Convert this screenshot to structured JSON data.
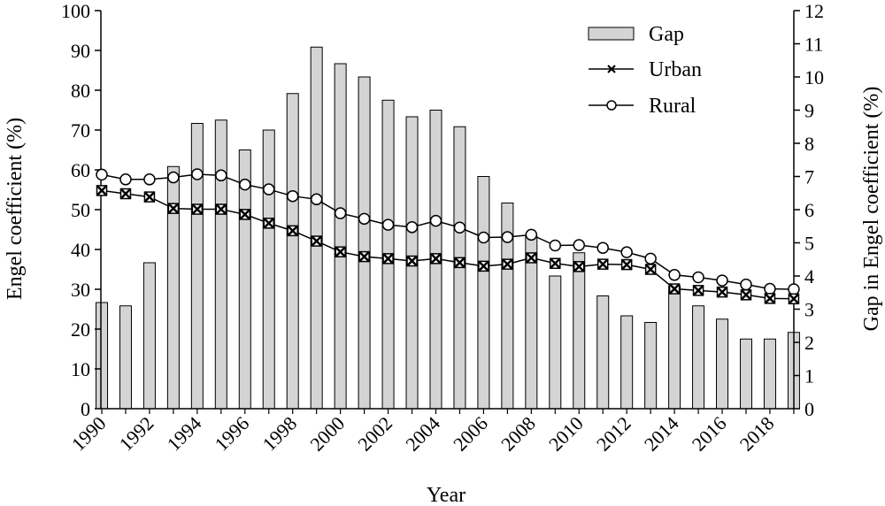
{
  "chart_data": {
    "type": "bar+line",
    "x": [
      1990,
      1991,
      1992,
      1993,
      1994,
      1995,
      1996,
      1997,
      1998,
      1999,
      2000,
      2001,
      2002,
      2003,
      2004,
      2005,
      2006,
      2007,
      2008,
      2009,
      2010,
      2011,
      2012,
      2013,
      2014,
      2015,
      2016,
      2017,
      2018,
      2019
    ],
    "x_tick_labels": [
      "1990",
      "1992",
      "1994",
      "1996",
      "1998",
      "2000",
      "2002",
      "2004",
      "2006",
      "2008",
      "2010",
      "2012",
      "2014",
      "2016",
      "2018"
    ],
    "xlabel": "Year",
    "ylabel_left": "Engel coefficient (%)",
    "ylabel_right": "Gap in Engel coefficient (%)",
    "ylim_left": [
      0,
      100
    ],
    "ylim_right": [
      0,
      12
    ],
    "y_ticks_left": [
      "0",
      "10",
      "20",
      "30",
      "40",
      "50",
      "60",
      "70",
      "80",
      "90",
      "100"
    ],
    "y_ticks_right": [
      "0",
      "1",
      "2",
      "3",
      "4",
      "5",
      "6",
      "7",
      "8",
      "9",
      "10",
      "11",
      "12"
    ],
    "legend_position": "top-right",
    "series": [
      {
        "name": "Gap",
        "kind": "bar",
        "axis": "right",
        "color": "#d4d4d4",
        "values": [
          3.2,
          3.1,
          4.4,
          7.3,
          8.6,
          8.7,
          7.8,
          8.4,
          9.5,
          10.9,
          10.4,
          10.0,
          9.3,
          8.8,
          9.0,
          8.5,
          7.0,
          6.2,
          5.2,
          4.0,
          4.7,
          3.4,
          2.8,
          2.6,
          3.7,
          3.1,
          2.7,
          2.1,
          2.1,
          2.3
        ]
      },
      {
        "name": "Urban",
        "kind": "line",
        "axis": "left",
        "marker": "x-square",
        "values": [
          54.8,
          54.0,
          53.2,
          50.3,
          50.1,
          50.1,
          48.8,
          46.6,
          44.7,
          42.1,
          39.4,
          38.2,
          37.7,
          37.1,
          37.7,
          36.7,
          35.8,
          36.3,
          37.9,
          36.5,
          35.7,
          36.3,
          36.2,
          35.0,
          30.1,
          29.7,
          29.3,
          28.6,
          27.7,
          27.6
        ]
      },
      {
        "name": "Rural",
        "kind": "line",
        "axis": "left",
        "marker": "circle",
        "values": [
          58.8,
          57.6,
          57.6,
          58.1,
          58.9,
          58.6,
          56.3,
          55.1,
          53.4,
          52.6,
          49.1,
          47.7,
          46.2,
          45.6,
          47.2,
          45.5,
          43.0,
          43.1,
          43.7,
          41.0,
          41.1,
          40.4,
          39.3,
          37.7,
          33.6,
          33.0,
          32.2,
          31.2,
          30.1,
          30.0
        ]
      }
    ]
  }
}
